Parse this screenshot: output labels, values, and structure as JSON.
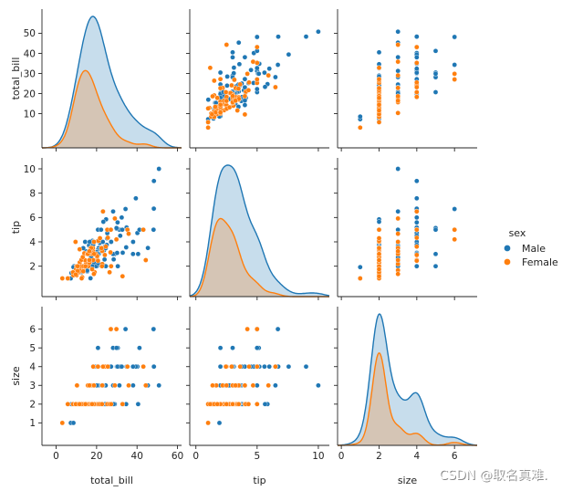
{
  "colors": {
    "male": "#1f77b4",
    "female": "#ff7f0e",
    "axis": "#262626"
  },
  "legend": {
    "title": "sex",
    "items": [
      "Male",
      "Female"
    ],
    "placement": "right"
  },
  "watermark": "CSDN @取名真难.",
  "chart_data": {
    "type": "pairplot",
    "variables": [
      "total_bill",
      "tip",
      "size"
    ],
    "hue": "sex",
    "axes": {
      "total_bill": {
        "lim": [
          -7,
          62
        ],
        "ticks": [
          0,
          20,
          40,
          60
        ],
        "diag_ticks": [
          10,
          20,
          30,
          40,
          50
        ]
      },
      "tip": {
        "lim": [
          -0.5,
          10.9
        ],
        "ticks": [
          0,
          5,
          10
        ],
        "diag_ticks": [
          2,
          4,
          6,
          8,
          10
        ]
      },
      "size": {
        "lim": [
          -0.2,
          7.2
        ],
        "ticks": [
          0,
          2,
          4,
          6
        ],
        "diag_ticks": [
          1,
          2,
          3,
          4,
          5,
          6
        ]
      }
    },
    "series": [
      {
        "name": "Male",
        "points": [
          [
            16.99,
            1.01,
            2
          ],
          [
            10.34,
            1.66,
            3
          ],
          [
            21.01,
            3.5,
            3
          ],
          [
            23.68,
            3.31,
            2
          ],
          [
            25.29,
            4.71,
            4
          ],
          [
            8.77,
            2,
            2
          ],
          [
            26.88,
            3.12,
            4
          ],
          [
            15.04,
            1.96,
            2
          ],
          [
            14.78,
            3.23,
            2
          ],
          [
            10.27,
            1.71,
            2
          ],
          [
            15.42,
            1.57,
            2
          ],
          [
            18.43,
            3,
            4
          ],
          [
            21.58,
            3.92,
            2
          ],
          [
            16.29,
            3.71,
            3
          ],
          [
            17.46,
            2.54,
            2
          ],
          [
            34.81,
            5.2,
            4
          ],
          [
            48.27,
            6.73,
            4
          ],
          [
            20.65,
            3.35,
            3
          ],
          [
            17.92,
            4.08,
            2
          ],
          [
            20.29,
            2.75,
            2
          ],
          [
            9.55,
            1.45,
            2
          ],
          [
            18.35,
            2.5,
            4
          ],
          [
            15.06,
            3,
            2
          ],
          [
            20.69,
            2.45,
            4
          ],
          [
            17.78,
            3.27,
            2
          ],
          [
            24.06,
            3.6,
            3
          ],
          [
            16.31,
            2,
            3
          ],
          [
            18.69,
            2.31,
            3
          ],
          [
            31.27,
            5,
            3
          ],
          [
            16.04,
            2.24,
            3
          ],
          [
            17.32,
            2,
            2
          ],
          [
            40.17,
            4.73,
            4
          ],
          [
            27.28,
            4,
            2
          ],
          [
            12.03,
            1.5,
            2
          ],
          [
            21.01,
            3,
            2
          ],
          [
            12.46,
            1.5,
            2
          ],
          [
            15.36,
            1.64,
            2
          ],
          [
            20.49,
            4.06,
            2
          ],
          [
            25.21,
            4.29,
            2
          ],
          [
            18.24,
            3.76,
            2
          ],
          [
            14.31,
            4,
            2
          ],
          [
            14,
            3,
            2
          ],
          [
            7.25,
            1,
            1
          ],
          [
            38.07,
            4,
            3
          ],
          [
            23.95,
            2.55,
            2
          ],
          [
            29.93,
            5.07,
            4
          ],
          [
            11.24,
            1.76,
            2
          ],
          [
            20.29,
            3.21,
            2
          ],
          [
            13.81,
            2,
            2
          ],
          [
            11.02,
            1.98,
            2
          ],
          [
            18.29,
            3.76,
            4
          ],
          [
            17.59,
            2.64,
            3
          ],
          [
            20.08,
            3.15,
            3
          ],
          [
            16,
            2,
            2
          ],
          [
            34.83,
            5.17,
            4
          ],
          [
            13.03,
            2,
            2
          ],
          [
            18.28,
            4,
            2
          ],
          [
            24.71,
            5.85,
            2
          ],
          [
            21.16,
            3,
            2
          ],
          [
            28.97,
            3,
            2
          ],
          [
            22.49,
            3.5,
            2
          ],
          [
            5.75,
            1,
            2
          ],
          [
            40.55,
            3,
            2
          ],
          [
            20.69,
            5,
            5
          ],
          [
            30.46,
            2,
            5
          ],
          [
            23.33,
            5.65,
            2
          ],
          [
            45.35,
            3.5,
            3
          ],
          [
            23.17,
            6.5,
            4
          ],
          [
            40.17,
            4.73,
            4
          ],
          [
            27.2,
            4,
            4
          ],
          [
            12.03,
            1.5,
            2
          ],
          [
            21.01,
            3,
            2
          ],
          [
            19.44,
            3,
            2
          ],
          [
            22.82,
            2.18,
            3
          ],
          [
            18.78,
            3,
            2
          ],
          [
            31.71,
            4.5,
            4
          ],
          [
            16.93,
            3.07,
            3
          ],
          [
            24.27,
            2.03,
            2
          ],
          [
            12.43,
            1.8,
            2
          ],
          [
            20.23,
            2.01,
            2
          ],
          [
            48.17,
            5,
            6
          ],
          [
            25,
            3.75,
            4
          ],
          [
            13.39,
            2.61,
            2
          ],
          [
            39.42,
            7.58,
            4
          ],
          [
            16.21,
            2,
            3
          ],
          [
            48.33,
            9,
            4
          ],
          [
            28.15,
            3,
            5
          ],
          [
            11.59,
            1.5,
            2
          ],
          [
            7.74,
            1.44,
            2
          ],
          [
            30.14,
            3.09,
            4
          ],
          [
            50.81,
            10,
            3
          ],
          [
            15.81,
            3.16,
            2
          ],
          [
            7.56,
            1.44,
            2
          ],
          [
            32.68,
            5,
            2
          ],
          [
            13.42,
            3.48,
            2
          ],
          [
            8.58,
            1.92,
            1
          ],
          [
            28.44,
            2.56,
            2
          ],
          [
            15.48,
            2.02,
            2
          ],
          [
            16.58,
            4,
            2
          ],
          [
            10.34,
            2,
            2
          ],
          [
            43.11,
            5,
            4
          ],
          [
            13,
            2,
            2
          ],
          [
            12.74,
            2.01,
            2
          ],
          [
            13.13,
            2,
            2
          ],
          [
            17.26,
            2.74,
            3
          ],
          [
            24.55,
            2,
            4
          ],
          [
            19.77,
            2,
            4
          ],
          [
            29.85,
            5.14,
            5
          ],
          [
            48.17,
            5,
            6
          ],
          [
            20.76,
            2.24,
            2
          ],
          [
            35.26,
            5,
            4
          ],
          [
            15.36,
            1.64,
            2
          ],
          [
            20.92,
            4.08,
            2
          ],
          [
            38.01,
            3,
            4
          ],
          [
            22.42,
            3.48,
            2
          ],
          [
            34.3,
            6.7,
            6
          ],
          [
            41.19,
            5,
            5
          ],
          [
            27.05,
            5,
            6
          ],
          [
            9.68,
            1.32,
            2
          ],
          [
            30.4,
            5.6,
            4
          ],
          [
            32.4,
            6,
            4
          ],
          [
            32.9,
            3.11,
            2
          ],
          [
            17.89,
            2,
            2
          ],
          [
            24.52,
            3.48,
            3
          ],
          [
            15.53,
            3,
            2
          ],
          [
            22.23,
            5,
            2
          ],
          [
            28.17,
            6.5,
            3
          ],
          [
            20.45,
            3,
            4
          ],
          [
            34.63,
            3.55,
            2
          ],
          [
            23.1,
            4,
            3
          ]
        ]
      },
      {
        "name": "Female",
        "points": [
          [
            24.59,
            3.61,
            4
          ],
          [
            35.26,
            5,
            4
          ],
          [
            14.83,
            3.02,
            2
          ],
          [
            10.33,
            1.67,
            3
          ],
          [
            16.97,
            3.5,
            3
          ],
          [
            20.29,
            2.75,
            2
          ],
          [
            15.77,
            2.23,
            2
          ],
          [
            19.65,
            3,
            2
          ],
          [
            9.78,
            1.73,
            2
          ],
          [
            8.35,
            1.5,
            2
          ],
          [
            18.35,
            2.5,
            4
          ],
          [
            15.06,
            3,
            2
          ],
          [
            20.69,
            2.45,
            4
          ],
          [
            20.27,
            2.83,
            2
          ],
          [
            14.07,
            2.5,
            2
          ],
          [
            22.75,
            3.25,
            2
          ],
          [
            10.07,
            1.25,
            2
          ],
          [
            3.07,
            1,
            1
          ],
          [
            43.11,
            5,
            4
          ],
          [
            29.03,
            5.92,
            3
          ],
          [
            26.86,
            3.14,
            2
          ],
          [
            25.28,
            5,
            2
          ],
          [
            14.73,
            2.2,
            2
          ],
          [
            10.65,
            1.5,
            2
          ],
          [
            12.43,
            1.8,
            2
          ],
          [
            24.08,
            2.92,
            4
          ],
          [
            11.69,
            2.31,
            2
          ],
          [
            13.42,
            1.68,
            2
          ],
          [
            14.26,
            2.5,
            2
          ],
          [
            15.95,
            2,
            2
          ],
          [
            12.48,
            2.52,
            2
          ],
          [
            29.8,
            4.2,
            6
          ],
          [
            8.52,
            1.48,
            2
          ],
          [
            14.52,
            2,
            2
          ],
          [
            11.38,
            2,
            2
          ],
          [
            22.82,
            2.18,
            3
          ],
          [
            19.08,
            1.5,
            2
          ],
          [
            20.27,
            2.83,
            2
          ],
          [
            11.17,
            1.5,
            2
          ],
          [
            12.26,
            2,
            2
          ],
          [
            18.26,
            3.25,
            2
          ],
          [
            8.51,
            1.25,
            2
          ],
          [
            10.33,
            2,
            2
          ],
          [
            14.15,
            2,
            2
          ],
          [
            13.16,
            2.75,
            2
          ],
          [
            17.47,
            3.5,
            2
          ],
          [
            27.05,
            5,
            6
          ],
          [
            16.43,
            2.3,
            2
          ],
          [
            8.35,
            1.5,
            2
          ],
          [
            18.64,
            1.36,
            3
          ],
          [
            11.87,
            1.63,
            2
          ],
          [
            13.94,
            3.06,
            2
          ],
          [
            9.6,
            4,
            2
          ],
          [
            15.38,
            3,
            2
          ],
          [
            44.3,
            2.5,
            3
          ],
          [
            22.42,
            3.48,
            2
          ],
          [
            20.92,
            4.08,
            2
          ],
          [
            13.42,
            1.58,
            2
          ],
          [
            16.27,
            2.5,
            2
          ],
          [
            10.09,
            2,
            2
          ],
          [
            16.4,
            2.5,
            2
          ],
          [
            12.9,
            1.1,
            2
          ],
          [
            17.51,
            3,
            2
          ],
          [
            10.59,
            1.61,
            2
          ],
          [
            10.63,
            2,
            2
          ],
          [
            9.68,
            1.32,
            2
          ],
          [
            18.78,
            3,
            2
          ],
          [
            13.51,
            2,
            2
          ],
          [
            15.98,
            3,
            3
          ],
          [
            12.6,
            1,
            2
          ],
          [
            15.69,
            3,
            3
          ],
          [
            11.61,
            3.39,
            2
          ],
          [
            18.15,
            3.5,
            3
          ],
          [
            23.17,
            6.5,
            4
          ],
          [
            26.41,
            1.5,
            2
          ],
          [
            25.56,
            4.34,
            4
          ],
          [
            14.48,
            2,
            2
          ],
          [
            17.31,
            3.5,
            2
          ],
          [
            16.47,
            3.23,
            3
          ],
          [
            5.75,
            1,
            2
          ],
          [
            21.7,
            4.3,
            2
          ],
          [
            35.83,
            4.67,
            3
          ],
          [
            32.83,
            1.17,
            2
          ],
          [
            27.18,
            2,
            2
          ],
          [
            22.67,
            2,
            2
          ],
          [
            17.82,
            1.75,
            2
          ],
          [
            18.71,
            4,
            3
          ]
        ]
      }
    ]
  }
}
